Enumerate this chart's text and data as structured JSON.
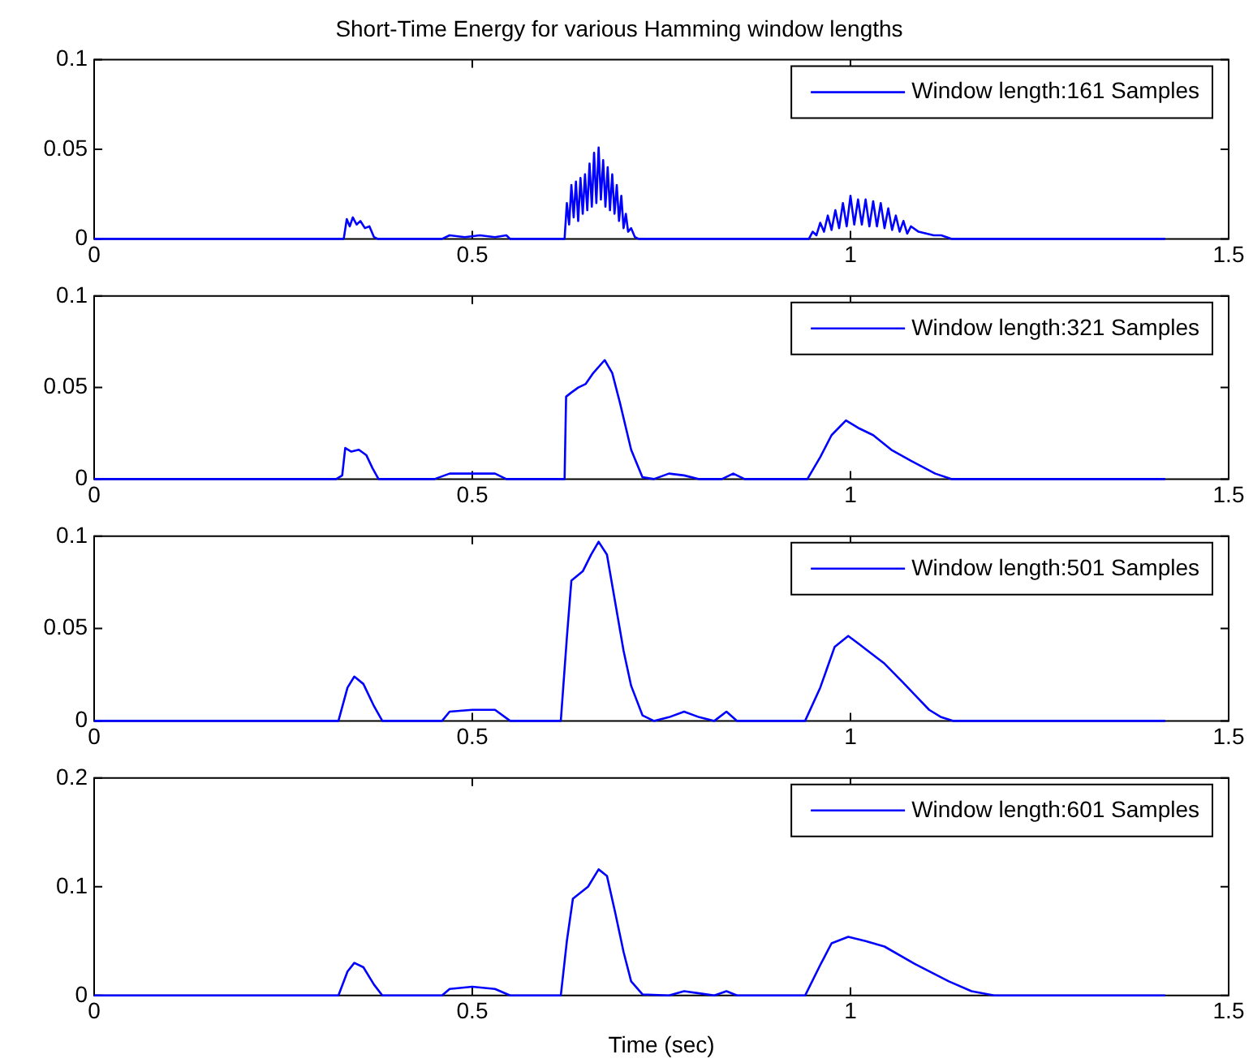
{
  "chart_data": [
    {
      "type": "line",
      "title": "Short-Time Energy for various Hamming window lengths",
      "xlim": [
        0,
        1.5
      ],
      "xticks": [
        0,
        0.5,
        1,
        1.5
      ],
      "ylim": [
        0,
        0.1
      ],
      "yticks": [
        0,
        0.05,
        0.1
      ],
      "legend": "top right",
      "grid": false,
      "series": [
        {
          "name": "Window length:161 Samples",
          "color": "#0000ff",
          "x": [
            0,
            0.32,
            0.33,
            0.334,
            0.338,
            0.342,
            0.347,
            0.352,
            0.358,
            0.364,
            0.37,
            0.375,
            0.46,
            0.47,
            0.49,
            0.51,
            0.53,
            0.545,
            0.55,
            0.622,
            0.625,
            0.628,
            0.631,
            0.634,
            0.637,
            0.64,
            0.643,
            0.646,
            0.649,
            0.652,
            0.655,
            0.658,
            0.661,
            0.664,
            0.667,
            0.67,
            0.673,
            0.676,
            0.679,
            0.682,
            0.685,
            0.688,
            0.691,
            0.694,
            0.697,
            0.7,
            0.703,
            0.706,
            0.71,
            0.715,
            0.72,
            0.945,
            0.95,
            0.955,
            0.96,
            0.965,
            0.97,
            0.975,
            0.98,
            0.985,
            0.99,
            0.995,
            1,
            1.005,
            1.01,
            1.015,
            1.02,
            1.025,
            1.03,
            1.035,
            1.04,
            1.045,
            1.05,
            1.055,
            1.06,
            1.065,
            1.07,
            1.075,
            1.08,
            1.09,
            1.1,
            1.11,
            1.12,
            1.134,
            1.416
          ],
          "values": [
            0,
            0,
            0,
            0.011,
            0.007,
            0.012,
            0.008,
            0.01,
            0.006,
            0.007,
            0.001,
            0,
            0,
            0.002,
            0.001,
            0.002,
            0.001,
            0.002,
            0,
            0,
            0.02,
            0.008,
            0.03,
            0.012,
            0.032,
            0.01,
            0.034,
            0.014,
            0.036,
            0.016,
            0.042,
            0.018,
            0.048,
            0.02,
            0.051,
            0.022,
            0.044,
            0.018,
            0.04,
            0.016,
            0.036,
            0.014,
            0.03,
            0.01,
            0.024,
            0.006,
            0.014,
            0.004,
            0.006,
            0.001,
            0,
            0,
            0.004,
            0.002,
            0.009,
            0.004,
            0.013,
            0.005,
            0.016,
            0.006,
            0.02,
            0.007,
            0.024,
            0.008,
            0.022,
            0.008,
            0.022,
            0.007,
            0.021,
            0.007,
            0.02,
            0.006,
            0.017,
            0.005,
            0.013,
            0.004,
            0.01,
            0.003,
            0.007,
            0.004,
            0.003,
            0.002,
            0.002,
            0,
            0
          ]
        }
      ]
    },
    {
      "type": "line",
      "xlim": [
        0,
        1.5
      ],
      "xticks": [
        0,
        0.5,
        1,
        1.5
      ],
      "ylim": [
        0,
        0.1
      ],
      "yticks": [
        0,
        0.05,
        0.1
      ],
      "legend": "top right",
      "grid": false,
      "series": [
        {
          "name": "Window length:321 Samples",
          "color": "#0000ff",
          "x": [
            0,
            0.32,
            0.328,
            0.332,
            0.34,
            0.35,
            0.36,
            0.368,
            0.376,
            0.45,
            0.47,
            0.5,
            0.53,
            0.545,
            0.622,
            0.624,
            0.63,
            0.64,
            0.65,
            0.66,
            0.675,
            0.685,
            0.695,
            0.71,
            0.725,
            0.74,
            0.76,
            0.78,
            0.8,
            0.83,
            0.845,
            0.86,
            0.943,
            0.96,
            0.975,
            0.994,
            1.01,
            1.03,
            1.054,
            1.08,
            1.112,
            1.134,
            1.416
          ],
          "values": [
            0,
            0,
            0.002,
            0.017,
            0.015,
            0.016,
            0.013,
            0.006,
            0,
            0,
            0.003,
            0.003,
            0.003,
            0,
            0,
            0.045,
            0.047,
            0.05,
            0.052,
            0.058,
            0.065,
            0.058,
            0.042,
            0.016,
            0.001,
            0,
            0.003,
            0.002,
            0,
            0,
            0.003,
            0,
            0,
            0.012,
            0.024,
            0.032,
            0.028,
            0.024,
            0.016,
            0.01,
            0.003,
            0,
            0
          ]
        }
      ]
    },
    {
      "type": "line",
      "xlim": [
        0,
        1.5
      ],
      "xticks": [
        0,
        0.5,
        1,
        1.5
      ],
      "ylim": [
        0,
        0.1
      ],
      "yticks": [
        0,
        0.05,
        0.1
      ],
      "legend": "top right",
      "grid": false,
      "series": [
        {
          "name": "Window length:501 Samples",
          "color": "#0000ff",
          "x": [
            0,
            0.3,
            0.323,
            0.335,
            0.344,
            0.356,
            0.37,
            0.381,
            0.46,
            0.47,
            0.5,
            0.53,
            0.55,
            0.617,
            0.625,
            0.631,
            0.646,
            0.657,
            0.667,
            0.678,
            0.689,
            0.7,
            0.71,
            0.725,
            0.74,
            0.76,
            0.78,
            0.8,
            0.82,
            0.836,
            0.85,
            0.94,
            0.96,
            0.979,
            0.997,
            1.01,
            1.026,
            1.045,
            1.069,
            1.09,
            1.104,
            1.12,
            1.136,
            1.416
          ],
          "values": [
            0,
            0,
            0,
            0.018,
            0.024,
            0.02,
            0.008,
            0,
            0,
            0.005,
            0.006,
            0.006,
            0,
            0,
            0.045,
            0.076,
            0.081,
            0.09,
            0.097,
            0.09,
            0.064,
            0.038,
            0.019,
            0.003,
            0,
            0.002,
            0.005,
            0.002,
            0,
            0.005,
            0,
            0,
            0.018,
            0.04,
            0.046,
            0.042,
            0.037,
            0.031,
            0.021,
            0.012,
            0.006,
            0.002,
            0,
            0
          ]
        }
      ]
    },
    {
      "type": "line",
      "xlabel": "Time (sec)",
      "xlim": [
        0,
        1.5
      ],
      "xticks": [
        0,
        0.5,
        1,
        1.5
      ],
      "ylim": [
        0,
        0.2
      ],
      "yticks": [
        0,
        0.1,
        0.2
      ],
      "legend": "top right",
      "grid": false,
      "series": [
        {
          "name": "Window length:601 Samples",
          "color": "#0000ff",
          "x": [
            0,
            0.32,
            0.323,
            0.335,
            0.344,
            0.356,
            0.37,
            0.381,
            0.46,
            0.47,
            0.5,
            0.53,
            0.55,
            0.617,
            0.625,
            0.633,
            0.653,
            0.667,
            0.678,
            0.689,
            0.7,
            0.71,
            0.725,
            0.76,
            0.78,
            0.8,
            0.82,
            0.836,
            0.85,
            0.94,
            0.96,
            0.975,
            0.997,
            1.02,
            1.045,
            1.085,
            1.13,
            1.16,
            1.19,
            1.416
          ],
          "values": [
            0,
            0,
            0,
            0.022,
            0.03,
            0.026,
            0.01,
            0,
            0,
            0.006,
            0.008,
            0.006,
            0,
            0,
            0.05,
            0.089,
            0.1,
            0.116,
            0.11,
            0.076,
            0.04,
            0.013,
            0.001,
            0,
            0.004,
            0.002,
            0,
            0.004,
            0,
            0,
            0.028,
            0.048,
            0.054,
            0.05,
            0.045,
            0.029,
            0.013,
            0.004,
            0,
            0
          ]
        }
      ]
    }
  ]
}
